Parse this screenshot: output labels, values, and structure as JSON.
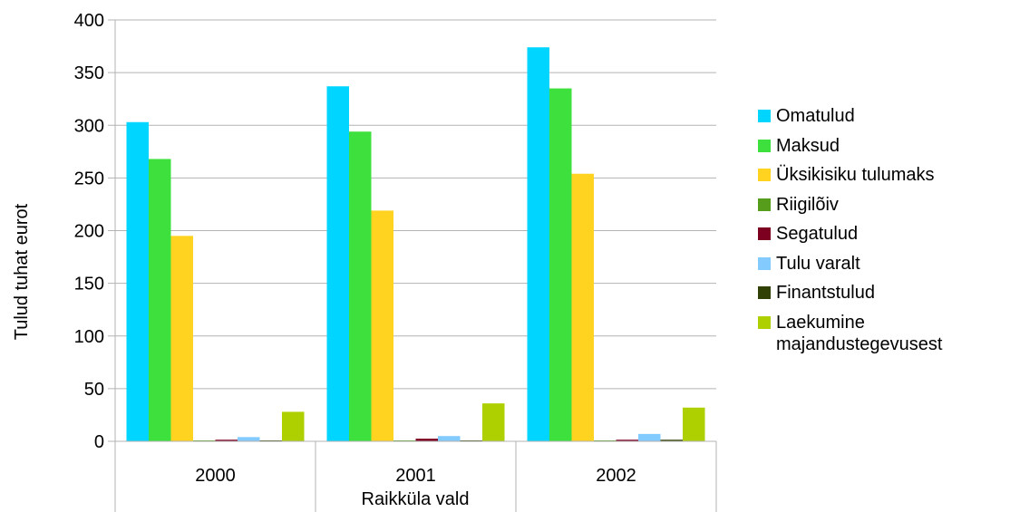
{
  "chart_data": {
    "type": "bar",
    "title": "",
    "xlabel": "Raikküla vald",
    "ylabel": "Tulud tuhat eurot",
    "ylim": [
      0,
      400
    ],
    "yticks": [
      0,
      50,
      100,
      150,
      200,
      250,
      300,
      350,
      400
    ],
    "categories": [
      "2000",
      "2001",
      "2002"
    ],
    "grid": "horizontal",
    "legend_position": "right",
    "series": [
      {
        "name": "Omatulud",
        "color": "#00d5ff",
        "values": [
          303,
          337,
          374
        ]
      },
      {
        "name": "Maksud",
        "color": "#3ee03e",
        "values": [
          268,
          294,
          335
        ]
      },
      {
        "name": "Üksikisiku tulumaks",
        "color": "#ffd320",
        "values": [
          195,
          219,
          254
        ]
      },
      {
        "name": "Riigilõiv",
        "color": "#579d1c",
        "values": [
          0.3,
          0.3,
          0.3
        ]
      },
      {
        "name": "Segatulud",
        "color": "#7e0021",
        "values": [
          1.5,
          2.5,
          1.5
        ]
      },
      {
        "name": "Tulu varalt",
        "color": "#83caff",
        "values": [
          4,
          5,
          7
        ]
      },
      {
        "name": "Finantstulud",
        "color": "#314004",
        "values": [
          0.3,
          0.3,
          1.5
        ]
      },
      {
        "name": "Laekumine majandustegevusest",
        "color": "#aecf00",
        "values": [
          28,
          36,
          32
        ]
      }
    ]
  }
}
